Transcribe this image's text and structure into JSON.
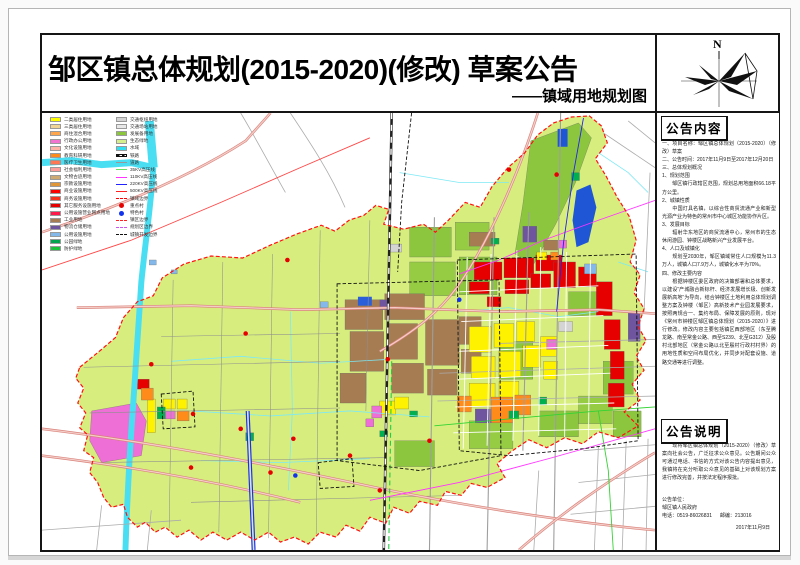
{
  "page": {
    "title": "邹区镇总体规划(2015-2020)(修改) 草案公告",
    "subtitle": "——镇域用地规划图",
    "compass_label": "N"
  },
  "legend": {
    "left": [
      {
        "label": "二类居住用地",
        "type": "fill",
        "color": "#ffff00"
      },
      {
        "label": "三类居住用地",
        "type": "fill",
        "color": "#efd493"
      },
      {
        "label": "商住混合用地",
        "type": "fill",
        "color": "#ffa64d"
      },
      {
        "label": "行政办公用地",
        "type": "fill",
        "color": "#f472d0"
      },
      {
        "label": "文化设施用地",
        "type": "fill",
        "color": "#ffb3a7"
      },
      {
        "label": "教育科研用地",
        "type": "fill",
        "color": "#ff8c1a"
      },
      {
        "label": "医疗卫生用地",
        "type": "fill",
        "color": "#ff7755"
      },
      {
        "label": "社会福利用地",
        "type": "fill",
        "color": "#ff9d9d"
      },
      {
        "label": "文物古迹用地",
        "type": "fill",
        "color": "#cfa972"
      },
      {
        "label": "宗教设施用地",
        "type": "fill",
        "color": "#e09536"
      },
      {
        "label": "商业设施用地",
        "type": "fill",
        "color": "#ff0000"
      },
      {
        "label": "商务设施用地",
        "type": "fill",
        "color": "#f5331e"
      },
      {
        "label": "其它服务设施用地",
        "type": "fill",
        "color": "#e60000"
      },
      {
        "label": "公用设施营业网点用地",
        "type": "fill",
        "color": "#ff1a4b"
      },
      {
        "label": "工业用地",
        "type": "fill",
        "color": "#a67c52"
      },
      {
        "label": "物流仓储用地",
        "type": "fill",
        "color": "#6f55a0"
      },
      {
        "label": "公用设施用地",
        "type": "fill",
        "color": "#85b8ea"
      },
      {
        "label": "公园绿地",
        "type": "fill",
        "color": "#00a64f"
      },
      {
        "label": "防护绿地",
        "type": "fill",
        "color": "#19c43c"
      }
    ],
    "right": [
      {
        "label": "交通枢纽用地",
        "type": "fill",
        "color": "#d4d4d4"
      },
      {
        "label": "交通场站用地",
        "type": "fill",
        "color": "#e8e8e8"
      },
      {
        "label": "发展备用地",
        "type": "fill",
        "color": "#8cc63f"
      },
      {
        "label": "生态绿地",
        "type": "fill",
        "color": "#d7ee8e"
      },
      {
        "label": "水域",
        "type": "fill",
        "color": "#33ddf2"
      },
      {
        "label": "铁路",
        "type": "rail",
        "color": "#111111"
      },
      {
        "label": "道路",
        "type": "line",
        "color": "#999999"
      },
      {
        "label": "35KV高压线",
        "type": "line",
        "color": "#66e066"
      },
      {
        "label": "110KV高压线",
        "type": "line",
        "color": "#ff33ff"
      },
      {
        "label": "220KV高压线",
        "type": "line",
        "color": "#2222ff"
      },
      {
        "label": "500KV高压线",
        "type": "line",
        "color": "#ff2222"
      },
      {
        "label": "镇域边界",
        "type": "dashdot",
        "color": "#ff0000"
      },
      {
        "label": "重点村",
        "type": "dot",
        "color": "#e60000"
      },
      {
        "label": "特色村",
        "type": "dot",
        "color": "#1133ee"
      },
      {
        "label": "镇区边界",
        "type": "dash",
        "color": "#ff2222"
      },
      {
        "label": "规划区边界",
        "type": "dash",
        "color": "#cc55ee"
      },
      {
        "label": "城镇开发边界",
        "type": "dash",
        "color": "#111111"
      }
    ]
  },
  "announcement": {
    "title": "公告内容",
    "lines": [
      "一、项目名称：邹区镇总体规划（2015-2020）（修改）草案",
      "二、公告时间：2017年11月9日至2017年12月20日",
      "三、总体规划概况",
      "1、规划范围",
      "　　邹区镇行政辖区范围，规划总用地面积66.18平方公里。",
      "2、城镇性质",
      "　　中国灯具名镇，以综合性商贸流通产业和新型光源产业为特色的常州市中心城区功能协作片区。",
      "3、发展目标",
      "　　辐射华东地区的商贸流通中心，常州市的生态休闲游园、钟楼区战略新兴产业发展平台。",
      "4、人口及城镇化",
      "　　规划至2030年，邹区镇域常住人口规模为11.3万人，城镇人口7.9万人，城镇化水平为70%。",
      "四、修改主要内容",
      "　　根据钟楼区委区政府的决策部署和总体要求，以建设“产城融合新标杆、经济发展增长极、创新发展新高地”为导向，结合钟楼区土地利用总体规划调整方案及钟楼（邹区）高新技术产业园发展要求，按照两规合一、集约布局、保障发展的原则，现对《常州市钟楼区邹区镇总体规划（2015-2020）》进行修改。修改内容主要包括镇区西部地区（东至腾龙路、南至常金公路、西至S239、北至G312）及殷村北部地区（常金公路以北至殷村行政村村界）的用地性质和空间布局优化，并同步对配套设施、道路交通等进行调整。"
    ]
  },
  "notes": {
    "title": "公告说明",
    "paragraph": "　　现将邹区镇总体规划（2015-2020）（修改）草案向社会公告，广泛征求公众意见。公告期间公众可通过电话、书信的方式对该公告内容提出意见，我镇将在充分听取公众意见的基础上对该规划方案进行修改完善，并按法定程序报批。",
    "unit_label": "公告单位：",
    "unit_name": "邹区镇人民政府",
    "phone": "电话：0519-86026831",
    "postcode": "邮编：213016",
    "date": "2017年11月9日"
  },
  "map": {
    "colors": {
      "town_area": "#d7ee7e",
      "development_reserve": "#8cc63f",
      "water": "#4adef2",
      "deep_water": "#1e56d6",
      "commercial_red": "#e60000",
      "industrial_brown": "#a67c52",
      "residential_yellow": "#fff200",
      "education_orange": "#ff8c1a",
      "admin_magenta": "#ee6fd6",
      "logistics_purple": "#6f55a0",
      "utility_blue": "#85b8ea",
      "park_green": "#00b050",
      "boundary_red": "#ff1111",
      "road_gray": "#9e9e9e",
      "highway_salmon": "#d9827a"
    }
  }
}
